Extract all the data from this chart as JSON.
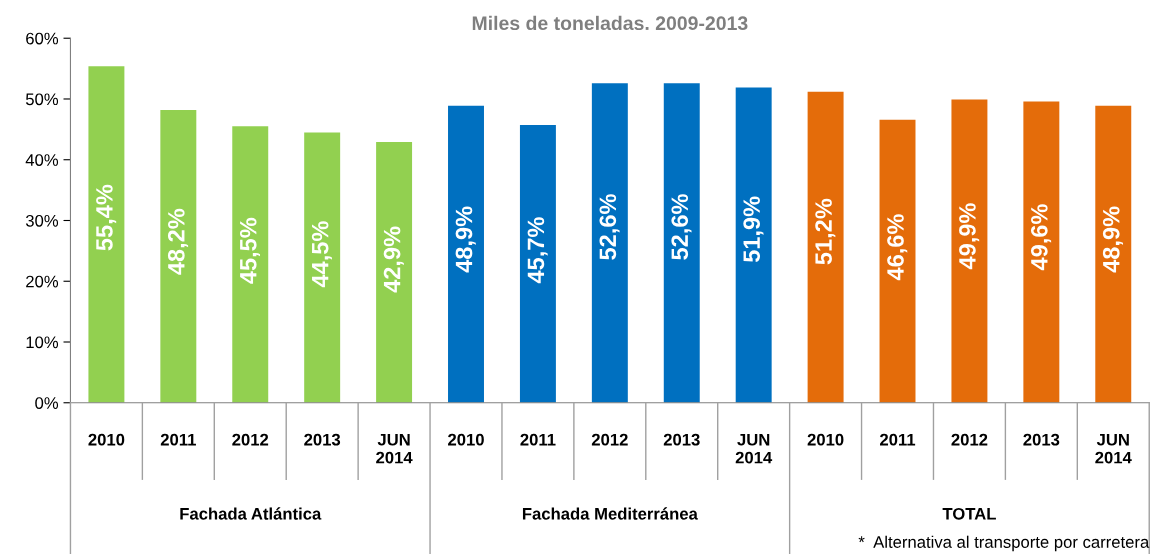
{
  "chart_data": {
    "type": "bar",
    "title": "Miles de toneladas. 2009-2013",
    "categories": [
      "2010",
      "2011",
      "2012",
      "2013",
      "JUN\n2014",
      "2010",
      "2011",
      "2012",
      "2013",
      "JUN\n2014",
      "2010",
      "2011",
      "2012",
      "2013",
      "JUN\n2014"
    ],
    "values": [
      55.4,
      48.2,
      45.5,
      44.5,
      42.9,
      48.9,
      45.7,
      52.6,
      52.6,
      51.9,
      51.2,
      46.6,
      49.9,
      49.6,
      48.9
    ],
    "value_labels": [
      "55,4%",
      "48,2%",
      "45,5%",
      "44,5%",
      "42,9%",
      "48,9%",
      "45,7%",
      "52,6%",
      "52,6%",
      "51,9%",
      "51,2%",
      "46,6%",
      "49,9%",
      "49,6%",
      "48,9%"
    ],
    "colors": [
      "#92d050",
      "#92d050",
      "#92d050",
      "#92d050",
      "#92d050",
      "#0070c0",
      "#0070c0",
      "#0070c0",
      "#0070c0",
      "#0070c0",
      "#e46c0a",
      "#e46c0a",
      "#e46c0a",
      "#e46c0a",
      "#e46c0a"
    ],
    "ylim": [
      0,
      60
    ],
    "yticks": [
      {
        "value": 0,
        "label": "0%"
      },
      {
        "value": 10,
        "label": "10%"
      },
      {
        "value": 20,
        "label": "20%"
      },
      {
        "value": 30,
        "label": "30%"
      },
      {
        "value": 40,
        "label": "40%"
      },
      {
        "value": 50,
        "label": "50%"
      },
      {
        "value": 60,
        "label": "60%"
      }
    ],
    "grid": false,
    "annotations": [
      "Fachada Atlántica",
      "Fachada Mediterránea",
      "TOTAL",
      "*  Alternativa al transporte por carretera"
    ]
  }
}
